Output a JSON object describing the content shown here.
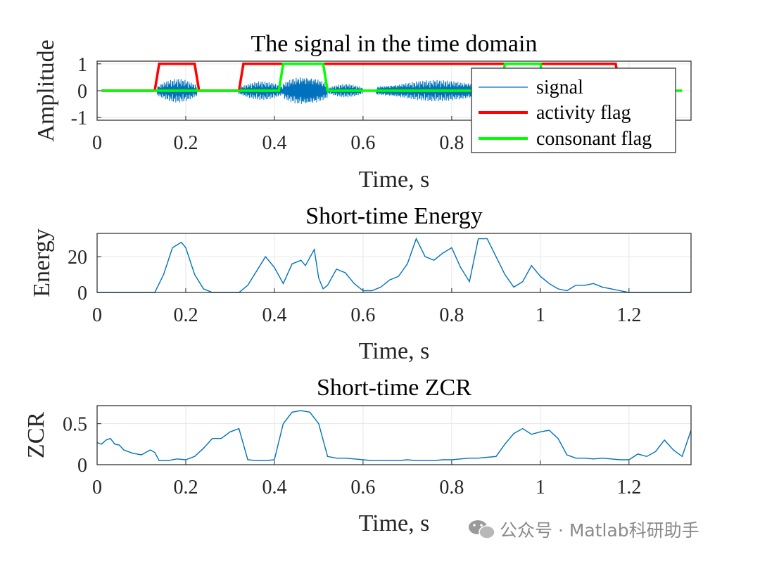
{
  "chart_data": [
    {
      "type": "line",
      "title": "The signal in the time domain",
      "xlabel": "Time, s",
      "ylabel": "Amplitude",
      "xlim": [
        0,
        1.34
      ],
      "ylim": [
        -1.1,
        1.1
      ],
      "xticks": [
        0,
        0.2,
        0.4,
        0.6,
        0.8
      ],
      "xtick_labels": [
        "0",
        "0.2",
        "0.4",
        "0.6",
        "0.8"
      ],
      "yticks": [
        -1,
        0,
        1
      ],
      "ytick_labels": [
        "-1",
        "0",
        "1"
      ],
      "grid": true,
      "legend_position": "right",
      "series": [
        {
          "name": "signal",
          "color": "#0072BD",
          "bursts": [
            {
              "start": 0.135,
              "end": 0.225,
              "amp": 0.45
            },
            {
              "start": 0.32,
              "end": 0.42,
              "amp": 0.35
            },
            {
              "start": 0.42,
              "end": 0.52,
              "amp": 0.65
            },
            {
              "start": 0.52,
              "end": 0.6,
              "amp": 0.25
            },
            {
              "start": 0.63,
              "end": 0.92,
              "amp": 0.4
            },
            {
              "start": 0.92,
              "end": 1.0,
              "amp": 0.35
            },
            {
              "start": 1.0,
              "end": 1.18,
              "amp": 0.2
            }
          ]
        },
        {
          "name": "activity flag",
          "color": "#FF0000",
          "x": [
            0.01,
            0.13,
            0.14,
            0.22,
            0.23,
            0.32,
            0.33,
            1.17,
            1.18
          ],
          "y": [
            0,
            0,
            1,
            1,
            0,
            0,
            1,
            1,
            0
          ]
        },
        {
          "name": "consonant flag",
          "color": "#00FF00",
          "x": [
            0.01,
            0.41,
            0.42,
            0.51,
            0.52,
            0.91,
            0.92,
            1.0,
            1.01,
            1.32
          ],
          "y": [
            0,
            0,
            1,
            1,
            0,
            0,
            1,
            1,
            0,
            0
          ]
        }
      ]
    },
    {
      "type": "line",
      "title": "Short-time Energy",
      "xlabel": "Time, s",
      "ylabel": "Energy",
      "xlim": [
        0,
        1.34
      ],
      "ylim": [
        0,
        33
      ],
      "xticks": [
        0,
        0.2,
        0.4,
        0.6,
        0.8,
        1,
        1.2
      ],
      "xtick_labels": [
        "0",
        "0.2",
        "0.4",
        "0.6",
        "0.8",
        "1",
        "1.2"
      ],
      "yticks": [
        0,
        20
      ],
      "ytick_labels": [
        "0",
        "20"
      ],
      "grid": true,
      "series": [
        {
          "color": "#0072BD",
          "x": [
            0.0,
            0.13,
            0.15,
            0.17,
            0.19,
            0.2,
            0.22,
            0.24,
            0.26,
            0.32,
            0.34,
            0.36,
            0.38,
            0.4,
            0.42,
            0.44,
            0.46,
            0.47,
            0.49,
            0.5,
            0.51,
            0.52,
            0.54,
            0.56,
            0.58,
            0.6,
            0.62,
            0.64,
            0.66,
            0.68,
            0.7,
            0.72,
            0.74,
            0.76,
            0.78,
            0.8,
            0.82,
            0.84,
            0.86,
            0.88,
            0.9,
            0.92,
            0.94,
            0.96,
            0.98,
            1.0,
            1.02,
            1.04,
            1.06,
            1.08,
            1.1,
            1.12,
            1.14,
            1.16,
            1.18,
            1.2,
            1.34
          ],
          "y": [
            0,
            0,
            10,
            25,
            28,
            25,
            10,
            2,
            0,
            0,
            4,
            12,
            20,
            14,
            5,
            16,
            18,
            15,
            24,
            8,
            2,
            4,
            13,
            11,
            5,
            1,
            1,
            3,
            7,
            9,
            16,
            30,
            20,
            18,
            22,
            25,
            14,
            6,
            30,
            30,
            20,
            10,
            3,
            6,
            15,
            9,
            5,
            2,
            1,
            4,
            4,
            5,
            3,
            2,
            1,
            0,
            0
          ]
        }
      ]
    },
    {
      "type": "line",
      "title": "Short-time ZCR",
      "xlabel": "Time, s",
      "ylabel": "ZCR",
      "xlim": [
        0,
        1.34
      ],
      "ylim": [
        0,
        0.72
      ],
      "xticks": [
        0,
        0.2,
        0.4,
        0.6,
        0.8,
        1,
        1.2
      ],
      "xtick_labels": [
        "0",
        "0.2",
        "0.4",
        "0.6",
        "0.8",
        "1",
        "1.2"
      ],
      "yticks": [
        0,
        0.5
      ],
      "ytick_labels": [
        "0",
        "0.5"
      ],
      "grid": true,
      "series": [
        {
          "color": "#0072BD",
          "x": [
            0.0,
            0.01,
            0.02,
            0.03,
            0.04,
            0.05,
            0.06,
            0.08,
            0.1,
            0.12,
            0.13,
            0.14,
            0.16,
            0.18,
            0.2,
            0.22,
            0.24,
            0.26,
            0.28,
            0.3,
            0.32,
            0.34,
            0.36,
            0.38,
            0.4,
            0.42,
            0.44,
            0.46,
            0.48,
            0.5,
            0.52,
            0.54,
            0.56,
            0.58,
            0.6,
            0.62,
            0.64,
            0.66,
            0.68,
            0.7,
            0.72,
            0.74,
            0.76,
            0.78,
            0.8,
            0.82,
            0.84,
            0.86,
            0.88,
            0.9,
            0.92,
            0.94,
            0.96,
            0.98,
            1.0,
            1.02,
            1.04,
            1.06,
            1.08,
            1.1,
            1.12,
            1.14,
            1.16,
            1.18,
            1.2,
            1.22,
            1.24,
            1.26,
            1.28,
            1.3,
            1.32,
            1.34
          ],
          "y": [
            0.27,
            0.25,
            0.3,
            0.32,
            0.25,
            0.24,
            0.18,
            0.14,
            0.12,
            0.18,
            0.15,
            0.05,
            0.05,
            0.07,
            0.06,
            0.1,
            0.2,
            0.32,
            0.32,
            0.4,
            0.44,
            0.06,
            0.05,
            0.05,
            0.06,
            0.5,
            0.64,
            0.66,
            0.64,
            0.5,
            0.1,
            0.08,
            0.08,
            0.07,
            0.06,
            0.05,
            0.05,
            0.05,
            0.05,
            0.06,
            0.05,
            0.05,
            0.05,
            0.06,
            0.06,
            0.07,
            0.08,
            0.08,
            0.09,
            0.1,
            0.25,
            0.38,
            0.44,
            0.37,
            0.4,
            0.42,
            0.32,
            0.12,
            0.08,
            0.08,
            0.07,
            0.08,
            0.07,
            0.06,
            0.06,
            0.13,
            0.1,
            0.16,
            0.3,
            0.18,
            0.1,
            0.42
          ]
        }
      ]
    }
  ],
  "watermark": {
    "text": "公众号 · Matlab科研助手",
    "icon": "wechat-icon"
  }
}
